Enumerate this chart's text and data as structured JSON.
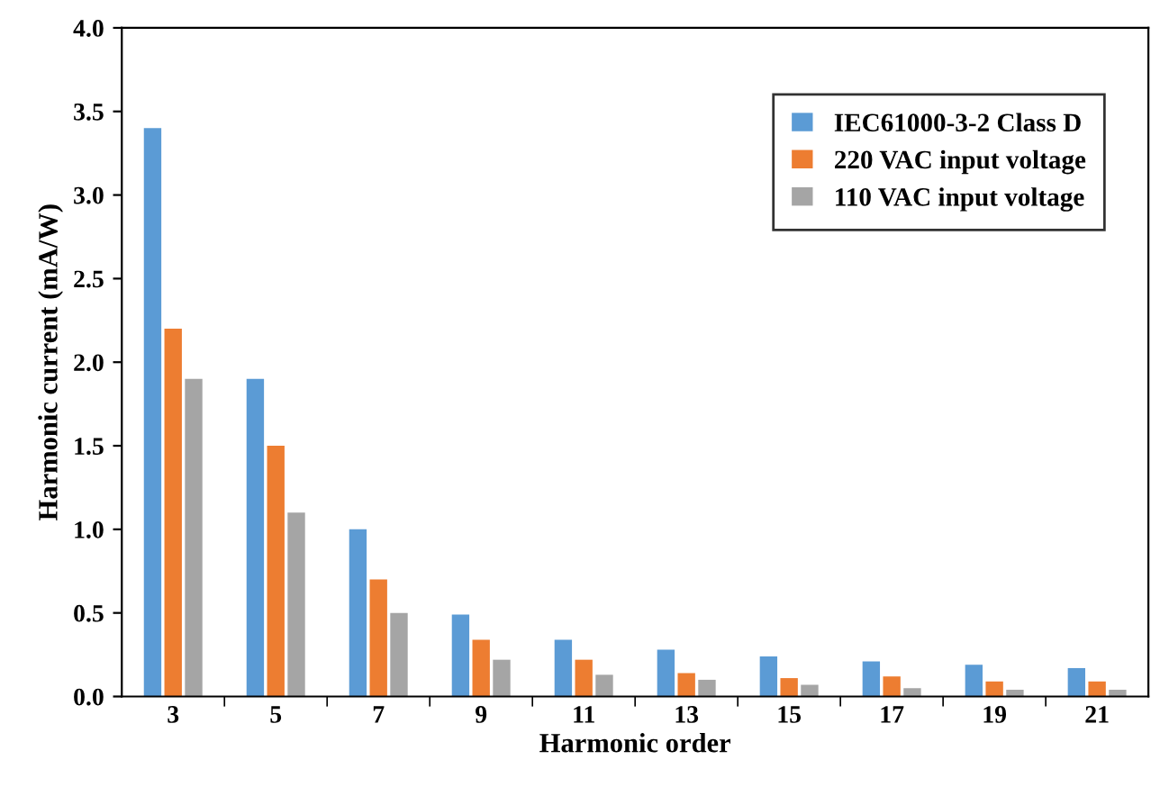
{
  "chart_data": {
    "type": "bar",
    "xlabel": "Harmonic order",
    "ylabel": "Harmonic current (mA/W)",
    "categories": [
      "3",
      "5",
      "7",
      "9",
      "11",
      "13",
      "15",
      "17",
      "19",
      "21"
    ],
    "series": [
      {
        "name": "IEC61000-3-2 Class D",
        "color": "#5b9bd5",
        "values": [
          3.4,
          1.9,
          1.0,
          0.49,
          0.34,
          0.28,
          0.24,
          0.21,
          0.19,
          0.17
        ]
      },
      {
        "name": "220 VAC input voltage",
        "color": "#ed7d31",
        "values": [
          2.2,
          1.5,
          0.7,
          0.34,
          0.22,
          0.14,
          0.11,
          0.12,
          0.09,
          0.09
        ]
      },
      {
        "name": "110 VAC input voltage",
        "color": "#a5a5a5",
        "values": [
          1.9,
          1.1,
          0.5,
          0.22,
          0.13,
          0.1,
          0.07,
          0.05,
          0.04,
          0.04
        ]
      }
    ],
    "ylim": [
      0,
      4.0
    ],
    "yticks": [
      {
        "value": 0,
        "label": "0.0"
      },
      {
        "value": 0.5,
        "label": "0.5"
      },
      {
        "value": 1.0,
        "label": "1.0"
      },
      {
        "value": 1.5,
        "label": "1.5"
      },
      {
        "value": 2.0,
        "label": "2.0"
      },
      {
        "value": 2.5,
        "label": "2.5"
      },
      {
        "value": 3.0,
        "label": "3.0"
      },
      {
        "value": 3.5,
        "label": "3.5"
      },
      {
        "value": 4.0,
        "label": "4.0"
      }
    ],
    "grid": false,
    "legend": "top right"
  }
}
